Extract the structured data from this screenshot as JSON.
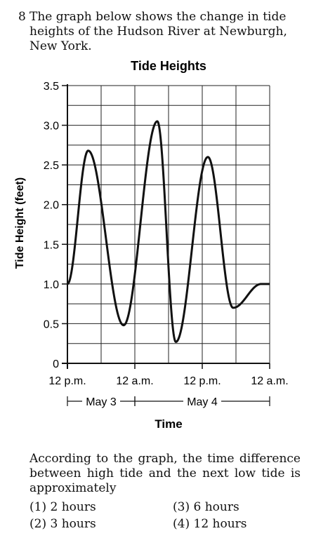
{
  "question": {
    "number": "8",
    "text": "The graph below shows the change in tide heights of the Hudson River at Newburgh, New York.",
    "prompt": "According to the graph, the time difference between high tide and the next low tide is approximately",
    "options": [
      {
        "key": "(1)",
        "text": "2 hours"
      },
      {
        "key": "(2)",
        "text": "3 hours"
      },
      {
        "key": "(3)",
        "text": "6 hours"
      },
      {
        "key": "(4)",
        "text": "12 hours"
      }
    ]
  },
  "chart_data": {
    "type": "line",
    "title": "Tide Heights",
    "xlabel": "Time",
    "ylabel": "Tide Height (feet)",
    "xlim": [
      0,
      36
    ],
    "ylim": [
      0,
      3.5
    ],
    "x_ticks": [
      {
        "value": 0,
        "label": "12 p.m."
      },
      {
        "value": 12,
        "label": "12 a.m."
      },
      {
        "value": 24,
        "label": "12 p.m."
      },
      {
        "value": 36,
        "label": "12 a.m."
      }
    ],
    "y_ticks": [
      {
        "value": 0,
        "label": "0"
      },
      {
        "value": 0.5,
        "label": "0.5"
      },
      {
        "value": 1.0,
        "label": "1.0"
      },
      {
        "value": 1.5,
        "label": "1.5"
      },
      {
        "value": 2.0,
        "label": "2.0"
      },
      {
        "value": 2.5,
        "label": "2.5"
      },
      {
        "value": 3.0,
        "label": "3.0"
      },
      {
        "value": 3.5,
        "label": "3.5"
      }
    ],
    "date_ranges": [
      {
        "label": "May 3",
        "start": 0,
        "end": 12
      },
      {
        "label": "May 4",
        "start": 12,
        "end": 36
      }
    ],
    "grid": true,
    "series": [
      {
        "x": [
          0,
          3.7,
          10,
          16,
          19.3,
          25,
          29.5,
          34.5,
          36
        ],
        "y": [
          1.0,
          2.68,
          0.48,
          3.05,
          0.27,
          2.6,
          0.7,
          1.0,
          1.0
        ]
      }
    ]
  }
}
